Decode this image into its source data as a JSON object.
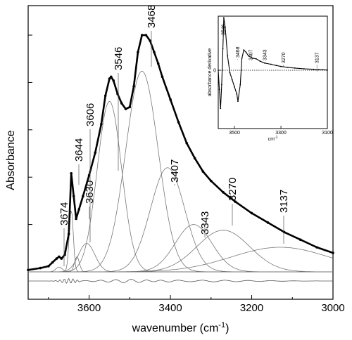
{
  "chart_data": [
    {
      "type": "line",
      "title": "",
      "xlabel": "wavenumber (cm",
      "xlabel_sup": "-1",
      "xlabel_suffix": ")",
      "ylabel": "Absorbance",
      "xlim": [
        3750,
        3000
      ],
      "x_reversed": true,
      "x_ticks": [
        3600,
        3400,
        3200,
        3000
      ],
      "grid": false,
      "series": [
        {
          "role": "experimental-spectrum",
          "style": "thick black line with dot markers",
          "x": [
            3750,
            3720,
            3700,
            3690,
            3680,
            3674,
            3668,
            3660,
            3650,
            3644,
            3638,
            3632,
            3625,
            3615,
            3600,
            3585,
            3570,
            3560,
            3550,
            3546,
            3540,
            3530,
            3520,
            3510,
            3500,
            3490,
            3480,
            3470,
            3460,
            3450,
            3440,
            3430,
            3420,
            3400,
            3380,
            3360,
            3340,
            3320,
            3300,
            3270,
            3240,
            3200,
            3160,
            3120,
            3080,
            3040,
            3000
          ],
          "y": [
            0.01,
            0.02,
            0.03,
            0.05,
            0.07,
            0.08,
            0.07,
            0.09,
            0.2,
            0.52,
            0.4,
            0.28,
            0.33,
            0.4,
            0.51,
            0.63,
            0.78,
            0.93,
            1.02,
            1.03,
            1.01,
            0.94,
            0.89,
            0.86,
            0.87,
            0.98,
            1.16,
            1.25,
            1.25,
            1.22,
            1.16,
            1.1,
            1.03,
            0.91,
            0.79,
            0.68,
            0.6,
            0.53,
            0.48,
            0.42,
            0.37,
            0.31,
            0.26,
            0.21,
            0.17,
            0.13,
            0.1
          ]
        }
      ],
      "component_bands": [
        {
          "label": "3674",
          "center": 3674,
          "height": 0.025,
          "width": 8
        },
        {
          "label": "3644",
          "center": 3644,
          "height": 0.33,
          "width": 5
        },
        {
          "label": "3630",
          "center": 3630,
          "height": 0.08,
          "width": 6
        },
        {
          "label": "3606",
          "center": 3606,
          "height": 0.15,
          "width": 20
        },
        {
          "label": "3546",
          "center": 3550,
          "height": 0.9,
          "width": 30
        },
        {
          "label": "3468",
          "center": 3470,
          "height": 1.06,
          "width": 40
        },
        {
          "label": "3407",
          "center": 3407,
          "height": 0.55,
          "width": 42
        },
        {
          "label": "3343",
          "center": 3343,
          "height": 0.25,
          "width": 45
        },
        {
          "label": "3270",
          "center": 3270,
          "height": 0.22,
          "width": 65
        },
        {
          "label": "3137",
          "center": 3130,
          "height": 0.13,
          "width": 120
        }
      ],
      "peak_labels": [
        "3674",
        "3644",
        "3630",
        "3606",
        "3546",
        "3468",
        "3407",
        "3343",
        "3270",
        "3137"
      ],
      "residual": {
        "note": "fit residual trace beneath the baseline"
      }
    },
    {
      "type": "line",
      "role": "inset",
      "title": "",
      "xlabel": "cm",
      "xlabel_sup": "-1",
      "ylabel": "absorbance derivative",
      "xlim": [
        3570,
        3100
      ],
      "x_reversed": true,
      "x_ticks": [
        3500,
        3300,
        3100
      ],
      "x_tick_labels": [
        "3500",
        "3300",
        "3100"
      ],
      "zero_line": "dotted",
      "peak_labels": [
        "3546",
        "3468",
        "3407",
        "3343",
        "3270",
        "3137"
      ],
      "series": [
        {
          "x": [
            3570,
            3565,
            3560,
            3555,
            3550,
            3546,
            3540,
            3530,
            3520,
            3510,
            3500,
            3490,
            3485,
            3475,
            3468,
            3460,
            3450,
            3440,
            3420,
            3407,
            3390,
            3370,
            3343,
            3320,
            3300,
            3270,
            3240,
            3200,
            3160,
            3137,
            3120,
            3100
          ],
          "y": [
            0.0,
            -0.8,
            -1.6,
            -0.6,
            0.9,
            2.2,
            1.8,
            0.6,
            -0.1,
            -0.4,
            -0.7,
            -1.0,
            -1.3,
            -0.6,
            0.5,
            0.85,
            0.75,
            0.6,
            0.5,
            0.48,
            0.38,
            0.3,
            0.25,
            0.2,
            0.16,
            0.12,
            0.09,
            0.06,
            0.04,
            0.03,
            0.02,
            0.01
          ]
        }
      ]
    }
  ]
}
